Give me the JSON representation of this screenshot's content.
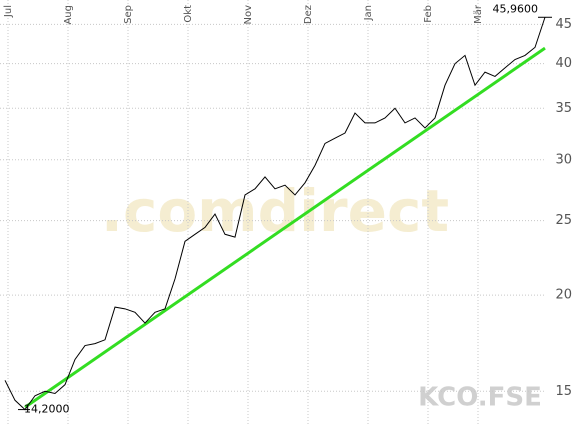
{
  "chart_data": {
    "type": "line",
    "categories": [
      "Jul",
      null,
      null,
      null,
      null,
      null,
      "Aug",
      null,
      null,
      null,
      null,
      null,
      "Sep",
      null,
      null,
      null,
      null,
      null,
      "Okt",
      null,
      null,
      null,
      null,
      null,
      "Nov",
      null,
      null,
      null,
      null,
      null,
      "Dez",
      null,
      null,
      null,
      null,
      null,
      "Jan",
      null,
      null,
      null,
      null,
      null,
      "Feb",
      null,
      null,
      null,
      null,
      "Mär",
      null,
      null,
      null,
      null,
      null,
      null,
      null
    ],
    "series": [
      {
        "color": "#000000",
        "values": [
          15.5,
          14.6,
          14.2,
          14.8,
          15,
          14.9,
          15.3,
          16.5,
          17.2,
          17.3,
          17.5,
          19.3,
          19.2,
          19,
          18.4,
          19,
          19.2,
          21,
          23.5,
          24,
          24.5,
          25.5,
          24,
          23.8,
          27,
          27.5,
          28.5,
          27.5,
          27.8,
          27,
          28,
          29.5,
          31.5,
          32,
          32.5,
          34.5,
          33.5,
          33.5,
          34,
          35,
          33.5,
          34,
          33,
          34,
          37.5,
          40,
          41,
          37.5,
          39,
          38.5,
          39.5,
          40.5,
          41,
          42,
          45.96
        ]
      }
    ],
    "trendline": {
      "color": "#33dd22",
      "values": [
        14.3,
        41.9
      ]
    },
    "annotations": [
      {
        "text": "45,9600",
        "value": 45.96
      },
      {
        "text": "14,2000",
        "value": 14.2
      }
    ],
    "watermarks": [
      ".comdirect",
      "KCO.FSE"
    ],
    "log_scale": true,
    "grid": true,
    "ylim": [
      13.6,
      48.4
    ],
    "yticks": [
      15,
      20,
      25,
      30,
      35,
      40,
      45
    ]
  }
}
